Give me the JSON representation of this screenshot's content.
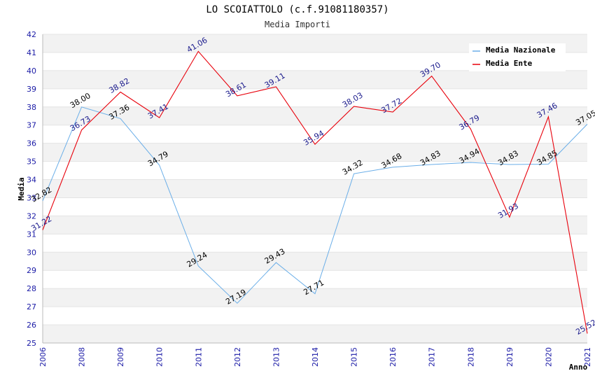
{
  "chart_data": {
    "type": "line",
    "title": "LO SCOIATTOLO (c.f.91081180357)",
    "subtitle": "Media Importi",
    "xlabel": "Anno",
    "ylabel": "Media",
    "ylim": [
      25,
      42
    ],
    "yticks": [
      "25",
      "26",
      "27",
      "28",
      "29",
      "30",
      "31",
      "32",
      "33",
      "34",
      "35",
      "36",
      "37",
      "38",
      "39",
      "40",
      "41",
      "42"
    ],
    "categories": [
      "2006",
      "2008",
      "2009",
      "2010",
      "2011",
      "2012",
      "2013",
      "2014",
      "2015",
      "2016",
      "2017",
      "2018",
      "2019",
      "2020",
      "2021"
    ],
    "legend_position": "top-right",
    "series": [
      {
        "name": "Media Nazionale",
        "color": "#6aaee8",
        "label_color": "#000000",
        "values": [
          32.82,
          38.0,
          37.36,
          34.79,
          29.24,
          27.19,
          29.43,
          27.71,
          34.32,
          34.68,
          34.83,
          34.94,
          34.83,
          34.85,
          37.05
        ],
        "labels": [
          "32.82",
          "38.00",
          "37.36",
          "34.79",
          "29.24",
          "27.19",
          "29.43",
          "27.71",
          "34.32",
          "34.68",
          "34.83",
          "34.94",
          "34.83",
          "34.85",
          "37.05"
        ]
      },
      {
        "name": "Media Ente",
        "color": "#e8000b",
        "label_color": "#1a1a8c",
        "values": [
          31.22,
          36.73,
          38.82,
          37.41,
          41.06,
          38.61,
          39.11,
          35.94,
          38.03,
          37.72,
          39.7,
          36.79,
          31.93,
          37.46,
          25.52
        ],
        "labels": [
          "31.22",
          "36.73",
          "38.82",
          "37.41",
          "41.06",
          "38.61",
          "39.11",
          "35.94",
          "38.03",
          "37.72",
          "39.70",
          "36.79",
          "31.93",
          "37.46",
          "25.52"
        ]
      }
    ]
  }
}
